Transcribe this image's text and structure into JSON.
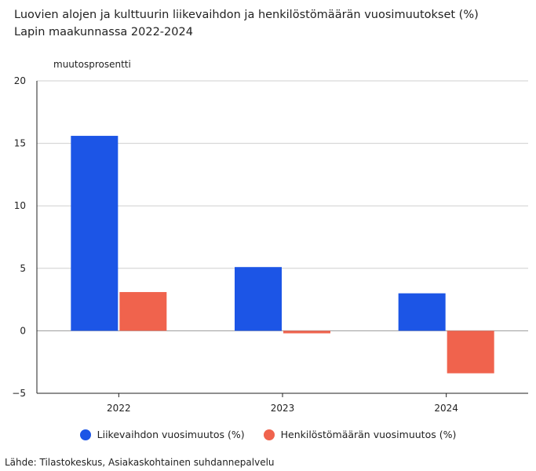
{
  "chart_data": {
    "type": "bar",
    "title": "Luovien alojen ja kulttuurin liikevaihdon ja henkilöstömäärän vuosimuutokset (%)",
    "subtitle": "Lapin maakunnassa 2022-2024",
    "ylabel": "muutosprosentti",
    "categories": [
      "2022",
      "2023",
      "2024"
    ],
    "yticks": [
      "20",
      "15",
      "10",
      "5",
      "0",
      "−5"
    ],
    "ylim": [
      -5,
      20
    ],
    "grid": true,
    "legend_position": "bottom",
    "series": [
      {
        "name": "Liikevaihdon vuosimuutos (%)",
        "color": "#1c55e6",
        "values": [
          15.6,
          5.1,
          3.0
        ]
      },
      {
        "name": "Henkilöstömäärän vuosimuutos (%)",
        "color": "#f0634d",
        "values": [
          3.1,
          -0.2,
          -3.4
        ]
      }
    ]
  },
  "source": "Lähde: Tilastokeskus, Asiakaskohtainen suhdannepalvelu"
}
